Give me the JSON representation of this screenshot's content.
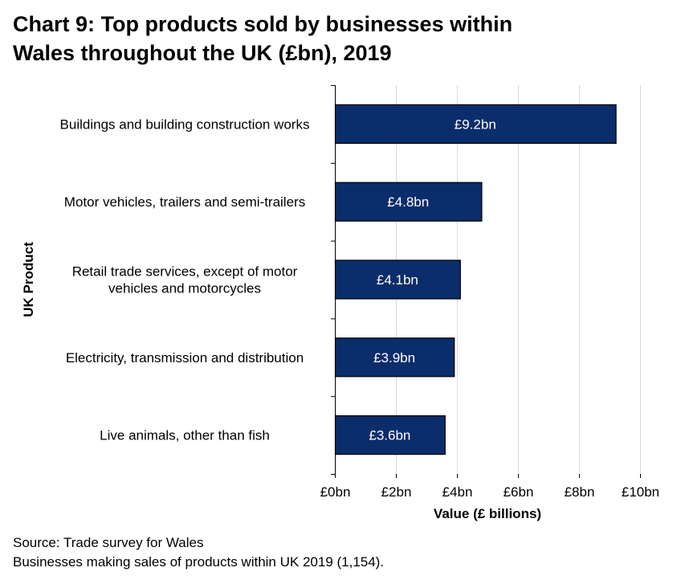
{
  "title": {
    "line1": "Chart 9: Top products sold by businesses within",
    "line2": "Wales throughout the UK (£bn), 2019"
  },
  "chart_data": {
    "type": "bar",
    "orientation": "horizontal",
    "categories": [
      [
        "Buildings and building construction works"
      ],
      [
        "Motor vehicles, trailers and semi-trailers"
      ],
      [
        "Retail trade services, except of motor",
        "vehicles and motorcycles"
      ],
      [
        "Electricity, transmission and distribution"
      ],
      [
        "Live animals, other than fish"
      ]
    ],
    "values": [
      9.2,
      4.8,
      4.1,
      3.9,
      3.6
    ],
    "data_labels": [
      "£9.2bn",
      "£4.8bn",
      "£4.1bn",
      "£3.9bn",
      "£3.6bn"
    ],
    "xlim": [
      0,
      10
    ],
    "x_ticks": [
      0,
      2,
      4,
      6,
      8,
      10
    ],
    "x_tick_labels": [
      "£0bn",
      "£2bn",
      "£4bn",
      "£6bn",
      "£8bn",
      "£10bn"
    ],
    "xlabel": "Value (£ billions)",
    "ylabel": "UK Product",
    "bar_color": "#0c2d6b",
    "grid": true,
    "legend": "none"
  },
  "footer": {
    "source": "Source: Trade survey for Wales",
    "note": "Businesses making sales of products within UK 2019 (1,154)."
  }
}
